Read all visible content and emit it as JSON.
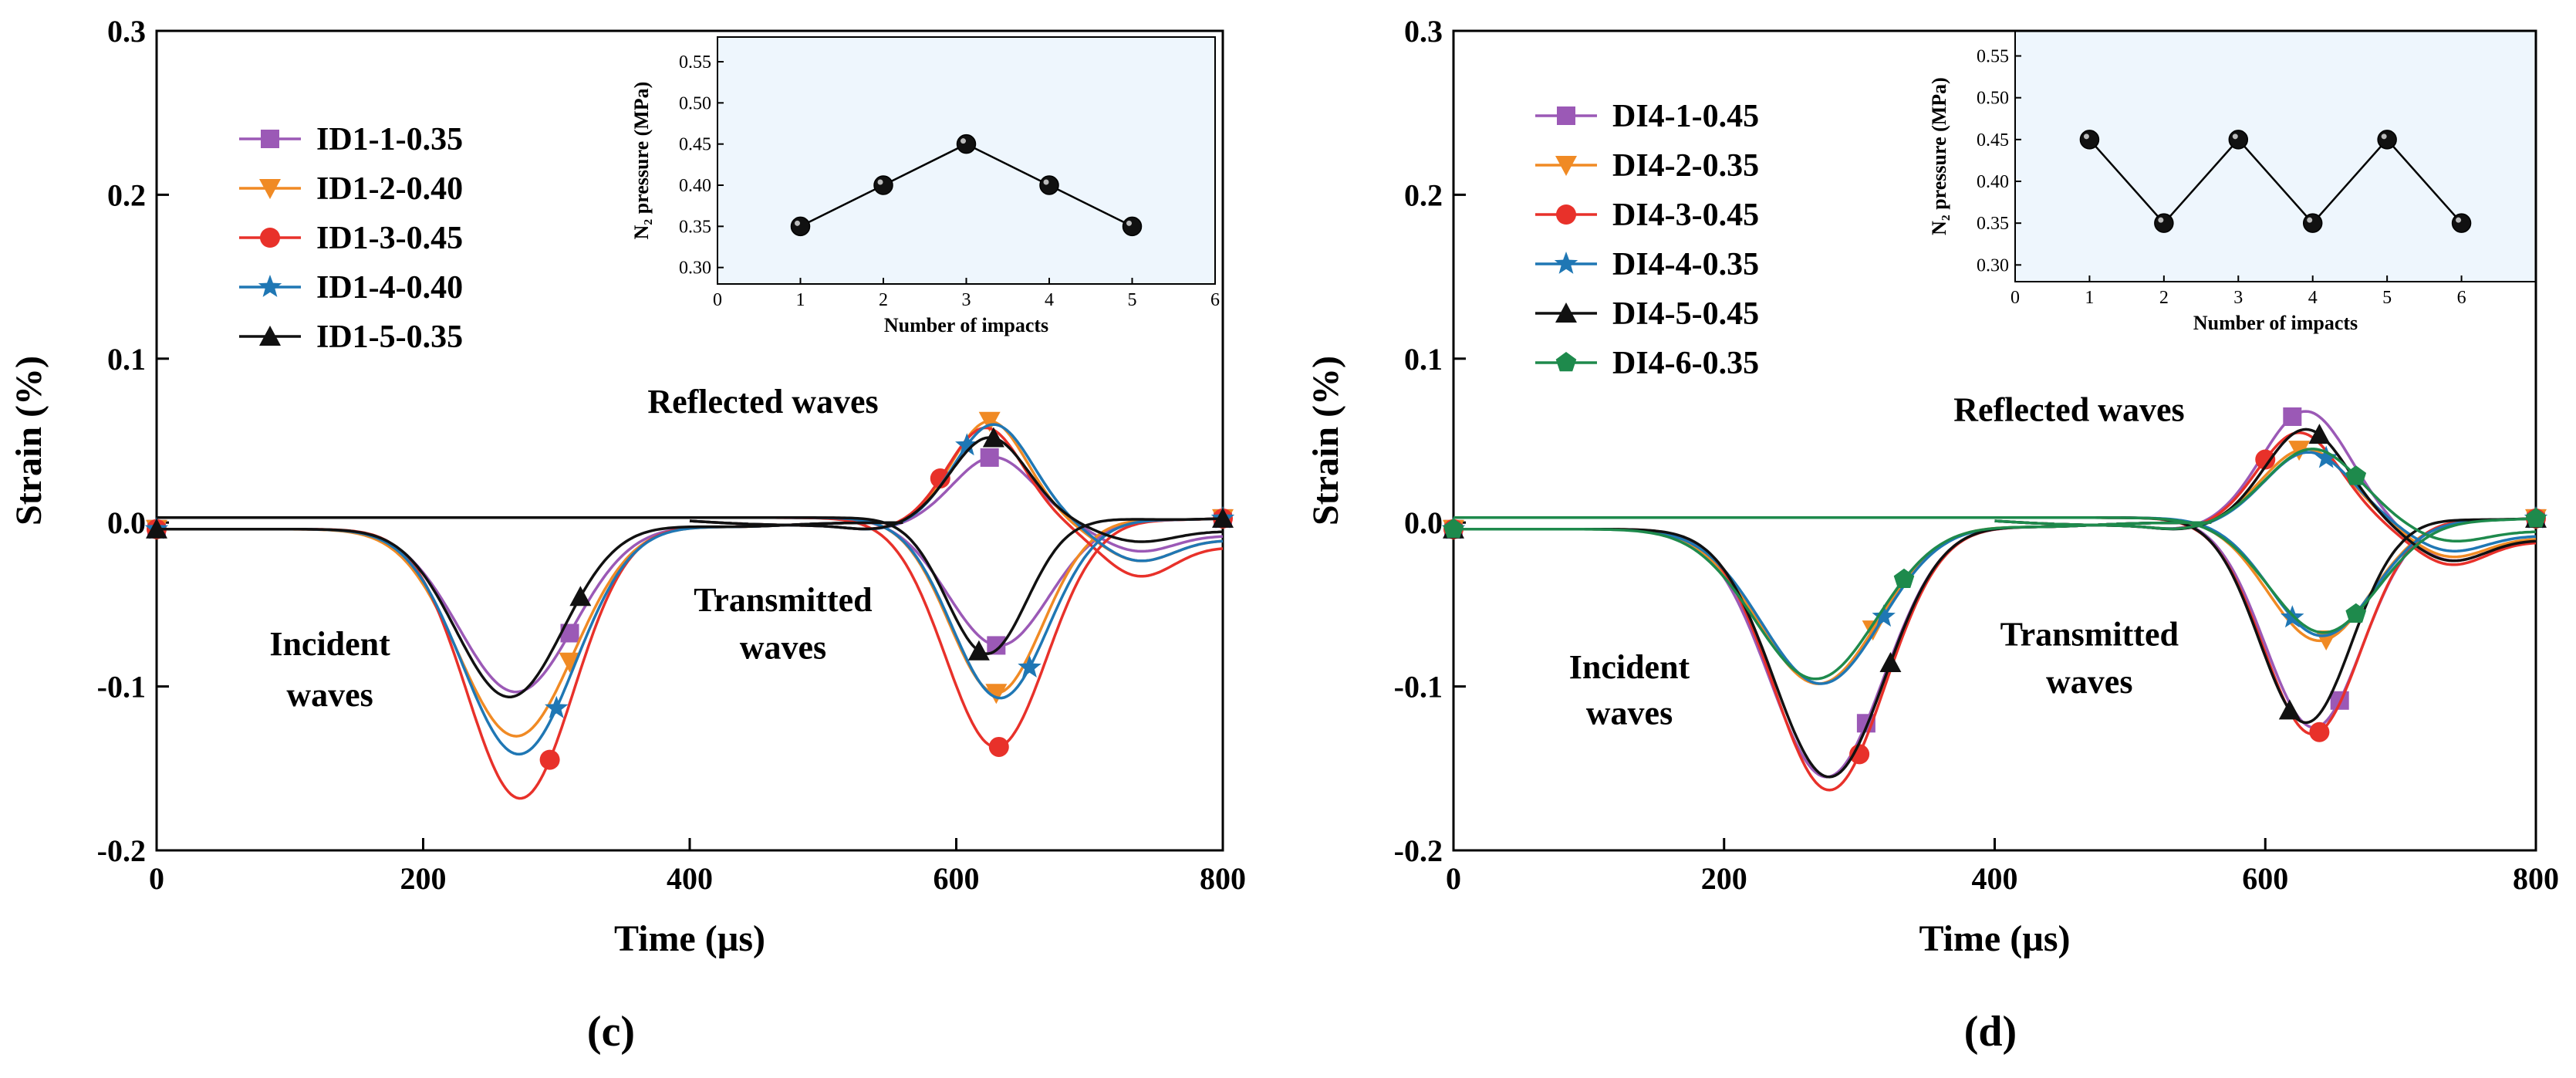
{
  "chart_data": [
    {
      "type": "line",
      "panel_label": "(c)",
      "xlabel": "Time (µs)",
      "ylabel": "Strain (%)",
      "xlim": [
        0,
        800
      ],
      "ylim": [
        -0.2,
        0.3
      ],
      "x_ticks": [
        0,
        200,
        400,
        600,
        800
      ],
      "x_tick_labels": [
        "0",
        "200",
        "400",
        "600",
        "800"
      ],
      "y_ticks": [
        -0.2,
        -0.1,
        0.0,
        0.1,
        0.2,
        0.3
      ],
      "y_tick_labels": [
        "-0.2",
        "-0.1",
        "0.0",
        "0.1",
        "0.2",
        "0.3"
      ],
      "annotations": [
        {
          "text": "Incident",
          "x": 130,
          "y": -0.081
        },
        {
          "text": "waves",
          "x": 130,
          "y": -0.112
        },
        {
          "text": "Reflected waves",
          "x": 455,
          "y": 0.067
        },
        {
          "text": "Transmitted",
          "x": 470,
          "y": -0.054
        },
        {
          "text": "waves",
          "x": 470,
          "y": -0.083
        }
      ],
      "series": [
        {
          "name": "ID1-1-0.35",
          "color": "#9b59b6",
          "marker": "square",
          "incident": {
            "center": 270,
            "width": 43,
            "amp": -0.1
          },
          "reflected": {
            "center": 628,
            "width": 30,
            "amp": 0.04,
            "tail": -0.015
          },
          "transmitted": {
            "center": 632,
            "width": 38,
            "amp": -0.078
          },
          "markers_inc": [
            0,
            310
          ],
          "markers_ref": [
            625
          ],
          "markers_tra": [
            630,
            800
          ]
        },
        {
          "name": "ID1-2-0.40",
          "color": "#f08a24",
          "marker": "triangle-down",
          "incident": {
            "center": 270,
            "width": 43,
            "amp": -0.127
          },
          "reflected": {
            "center": 625,
            "width": 28,
            "amp": 0.062,
            "tail": -0.02
          },
          "transmitted": {
            "center": 630,
            "width": 35,
            "amp": -0.107
          },
          "markers_inc": [
            0,
            310
          ],
          "markers_ref": [
            625
          ],
          "markers_tra": [
            630,
            800
          ]
        },
        {
          "name": "ID1-3-0.45",
          "color": "#e8312a",
          "marker": "circle",
          "incident": {
            "center": 273,
            "width": 40,
            "amp": -0.165
          },
          "reflected": {
            "center": 622,
            "width": 28,
            "amp": 0.058,
            "tail": -0.028
          },
          "transmitted": {
            "center": 630,
            "width": 38,
            "amp": -0.14
          },
          "markers_inc": [
            0,
            295
          ],
          "markers_ref": [
            588
          ],
          "markers_tra": [
            632,
            800
          ]
        },
        {
          "name": "ID1-4-0.40",
          "color": "#1f77b4",
          "marker": "star",
          "incident": {
            "center": 272,
            "width": 42,
            "amp": -0.138
          },
          "reflected": {
            "center": 628,
            "width": 29,
            "amp": 0.06,
            "tail": -0.02
          },
          "transmitted": {
            "center": 633,
            "width": 36,
            "amp": -0.11
          },
          "markers_inc": [
            0,
            300
          ],
          "markers_ref": [
            608
          ],
          "markers_tra": [
            655,
            800
          ]
        },
        {
          "name": "ID1-5-0.35",
          "color": "#111111",
          "marker": "triangle-up",
          "incident": {
            "center": 265,
            "width": 40,
            "amp": -0.103
          },
          "reflected": {
            "center": 625,
            "width": 29,
            "amp": 0.052,
            "tail": -0.01
          },
          "transmitted": {
            "center": 623,
            "width": 30,
            "amp": -0.083
          },
          "markers_inc": [
            0,
            318
          ],
          "markers_ref": [
            628
          ],
          "markers_tra": [
            617,
            800
          ]
        }
      ],
      "inset": {
        "xlabel": "Number of impacts",
        "ylabel": "N₂ pressure (MPa)",
        "xlim": [
          0,
          6
        ],
        "ylim": [
          0.28,
          0.58
        ],
        "x_ticks": [
          0,
          1,
          2,
          3,
          4,
          5,
          6
        ],
        "x_tick_labels": [
          "0",
          "1",
          "2",
          "3",
          "4",
          "5",
          "6"
        ],
        "y_ticks": [
          0.3,
          0.35,
          0.4,
          0.45,
          0.5,
          0.55
        ],
        "y_tick_labels": [
          "0.30",
          "0.35",
          "0.40",
          "0.45",
          "0.50",
          "0.55"
        ],
        "x": [
          1,
          2,
          3,
          4,
          5
        ],
        "y": [
          0.35,
          0.4,
          0.45,
          0.4,
          0.35
        ]
      }
    },
    {
      "type": "line",
      "panel_label": "(d)",
      "xlabel": "Time (µs)",
      "ylabel": "Strain (%)",
      "xlim": [
        0,
        800
      ],
      "ylim": [
        -0.2,
        0.3
      ],
      "x_ticks": [
        0,
        200,
        400,
        600,
        800
      ],
      "x_tick_labels": [
        "0",
        "200",
        "400",
        "600",
        "800"
      ],
      "y_ticks": [
        -0.2,
        -0.1,
        0.0,
        0.1,
        0.2,
        0.3
      ],
      "y_tick_labels": [
        "-0.2",
        "-0.1",
        "0.0",
        "0.1",
        "0.2",
        "0.3"
      ],
      "annotations": [
        {
          "text": "Incident",
          "x": 130,
          "y": -0.095
        },
        {
          "text": "waves",
          "x": 130,
          "y": -0.123
        },
        {
          "text": "Reflected waves",
          "x": 455,
          "y": 0.062
        },
        {
          "text": "Transmitted",
          "x": 470,
          "y": -0.075
        },
        {
          "text": "waves",
          "x": 470,
          "y": -0.104
        }
      ],
      "series": [
        {
          "name": "DI4-1-0.45",
          "color": "#9b59b6",
          "marker": "square",
          "incident": {
            "center": 276,
            "width": 42,
            "amp": -0.152
          },
          "reflected": {
            "center": 630,
            "width": 32,
            "amp": 0.068,
            "tail": -0.02
          },
          "transmitted": {
            "center": 636,
            "width": 36,
            "amp": -0.128
          },
          "markers_inc": [
            0,
            305
          ],
          "markers_ref": [
            620
          ],
          "markers_tra": [
            655,
            800
          ]
        },
        {
          "name": "DI4-2-0.35",
          "color": "#f08a24",
          "marker": "triangle-down",
          "incident": {
            "center": 270,
            "width": 44,
            "amp": -0.095
          },
          "reflected": {
            "center": 630,
            "width": 32,
            "amp": 0.045,
            "tail": -0.018
          },
          "transmitted": {
            "center": 640,
            "width": 38,
            "amp": -0.075
          },
          "markers_inc": [
            0,
            310
          ],
          "markers_ref": [
            625
          ],
          "markers_tra": [
            645,
            800
          ]
        },
        {
          "name": "DI4-3-0.45",
          "color": "#e8312a",
          "marker": "circle",
          "incident": {
            "center": 278,
            "width": 41,
            "amp": -0.16
          },
          "reflected": {
            "center": 625,
            "width": 30,
            "amp": 0.055,
            "tail": -0.022
          },
          "transmitted": {
            "center": 635,
            "width": 36,
            "amp": -0.132
          },
          "markers_inc": [
            0,
            300
          ],
          "markers_ref": [
            600
          ],
          "markers_tra": [
            640,
            800
          ]
        },
        {
          "name": "DI4-4-0.35",
          "color": "#1f77b4",
          "marker": "star",
          "incident": {
            "center": 272,
            "width": 44,
            "amp": -0.095
          },
          "reflected": {
            "center": 632,
            "width": 32,
            "amp": 0.043,
            "tail": -0.015
          },
          "transmitted": {
            "center": 642,
            "width": 38,
            "amp": -0.072
          },
          "markers_inc": [
            0,
            318
          ],
          "markers_ref": [
            645
          ],
          "markers_tra": [
            620,
            800
          ]
        },
        {
          "name": "DI4-5-0.45",
          "color": "#111111",
          "marker": "triangle-up",
          "incident": {
            "center": 278,
            "width": 41,
            "amp": -0.152
          },
          "reflected": {
            "center": 630,
            "width": 30,
            "amp": 0.057,
            "tail": -0.02
          },
          "transmitted": {
            "center": 630,
            "width": 34,
            "amp": -0.125
          },
          "markers_inc": [
            0,
            323
          ],
          "markers_ref": [
            640
          ],
          "markers_tra": [
            618,
            800
          ]
        },
        {
          "name": "DI4-6-0.35",
          "color": "#1e8a4c",
          "marker": "pentagon",
          "incident": {
            "center": 268,
            "width": 45,
            "amp": -0.092
          },
          "reflected": {
            "center": 635,
            "width": 34,
            "amp": 0.045,
            "tail": -0.01
          },
          "transmitted": {
            "center": 643,
            "width": 40,
            "amp": -0.07
          },
          "markers_inc": [
            0,
            333
          ],
          "markers_ref": [
            667
          ],
          "markers_tra": [
            667,
            800
          ]
        }
      ],
      "inset": {
        "xlabel": "Number of impacts",
        "ylabel": "N₂ pressure (MPa)",
        "xlim": [
          0,
          7
        ],
        "ylim": [
          0.28,
          0.58
        ],
        "x_ticks": [
          0,
          1,
          2,
          3,
          4,
          5,
          6
        ],
        "x_tick_labels": [
          "0",
          "1",
          "2",
          "3",
          "4",
          "5",
          "6"
        ],
        "y_ticks": [
          0.3,
          0.35,
          0.4,
          0.45,
          0.5,
          0.55
        ],
        "y_tick_labels": [
          "0.30",
          "0.35",
          "0.40",
          "0.45",
          "0.50",
          "0.55"
        ],
        "x": [
          1,
          2,
          3,
          4,
          5,
          6
        ],
        "y": [
          0.45,
          0.35,
          0.45,
          0.35,
          0.45,
          0.35
        ]
      }
    }
  ]
}
